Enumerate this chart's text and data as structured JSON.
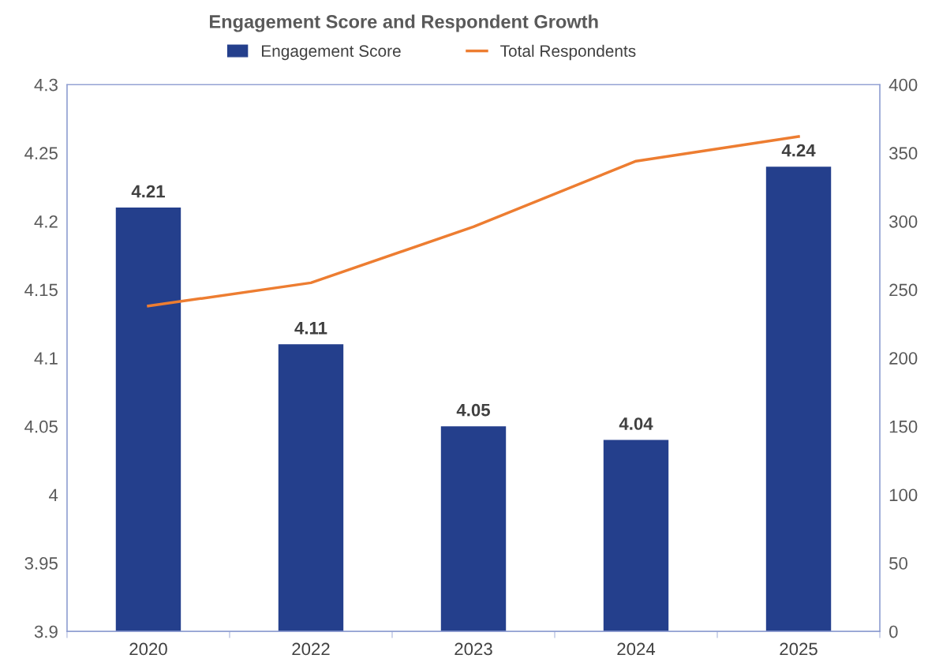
{
  "chart_data": {
    "type": "bar",
    "title": "Engagement Score and Respondent Growth",
    "categories": [
      "2020",
      "2022",
      "2023",
      "2024",
      "2025"
    ],
    "series": [
      {
        "name": "Engagement Score",
        "color": "#243f8c",
        "values": [
          4.21,
          4.11,
          4.05,
          4.04,
          4.24
        ],
        "value_labels": [
          "4.21",
          "4.11",
          "4.05",
          "4.04",
          "4.24"
        ]
      },
      {
        "name": "Total Respondents",
        "type": "line",
        "axis": "y2",
        "color": "#ed7d31",
        "values": [
          238,
          255,
          296,
          344,
          362
        ]
      }
    ],
    "ylim": [
      3.9,
      4.3
    ],
    "yticks": [
      {
        "value": 3.9,
        "label": "3.9"
      },
      {
        "value": 3.95,
        "label": "3.95"
      },
      {
        "value": 4,
        "label": "4"
      },
      {
        "value": 4.05,
        "label": "4.05"
      },
      {
        "value": 4.1,
        "label": "4.1"
      },
      {
        "value": 4.15,
        "label": "4.15"
      },
      {
        "value": 4.2,
        "label": "4.2"
      },
      {
        "value": 4.25,
        "label": "4.25"
      },
      {
        "value": 4.3,
        "label": "4.3"
      }
    ],
    "y2lim": [
      0,
      400
    ],
    "y2ticks": [
      0,
      50,
      100,
      150,
      200,
      250,
      300,
      350,
      400
    ],
    "legend": "top",
    "grid": false,
    "marker": "none",
    "line_style": "solid"
  }
}
